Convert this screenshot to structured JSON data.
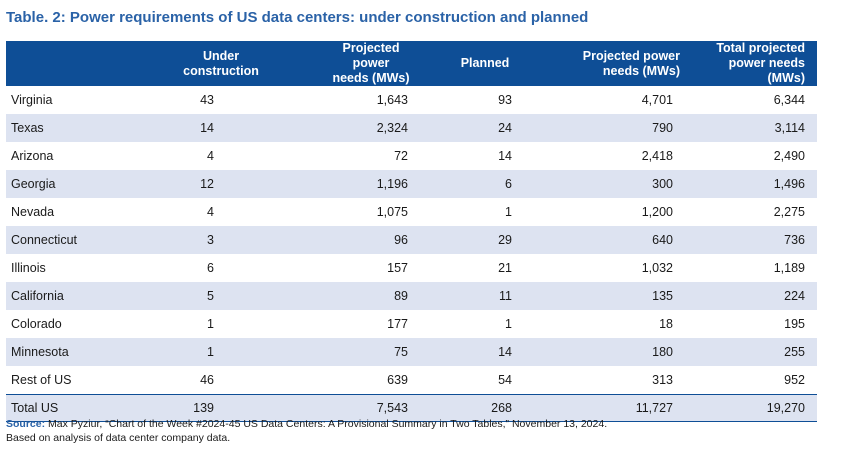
{
  "title": "Table. 2: Power requirements of US data centers: under construction and planned",
  "chart_data": {
    "type": "table",
    "columns": [
      {
        "line1": "",
        "line2": ""
      },
      {
        "line1": "Under",
        "line2": "construction"
      },
      {
        "line1": "Projected power",
        "line2": "needs (MWs)"
      },
      {
        "line1": "",
        "line2": "Planned"
      },
      {
        "line1": "Projected power",
        "line2": "needs (MWs)"
      },
      {
        "line1": "Total projected",
        "line2": "power needs (MWs)"
      }
    ],
    "rows": [
      [
        "Virginia",
        "43",
        "1,643",
        "93",
        "4,701",
        "6,344"
      ],
      [
        "Texas",
        "14",
        "2,324",
        "24",
        "790",
        "3,114"
      ],
      [
        "Arizona",
        "4",
        "72",
        "14",
        "2,418",
        "2,490"
      ],
      [
        "Georgia",
        "12",
        "1,196",
        "6",
        "300",
        "1,496"
      ],
      [
        "Nevada",
        "4",
        "1,075",
        "1",
        "1,200",
        "2,275"
      ],
      [
        "Connecticut",
        "3",
        "96",
        "29",
        "640",
        "736"
      ],
      [
        "Illinois",
        "6",
        "157",
        "21",
        "1,032",
        "1,189"
      ],
      [
        "California",
        "5",
        "89",
        "11",
        "135",
        "224"
      ],
      [
        "Colorado",
        "1",
        "177",
        "1",
        "18",
        "195"
      ],
      [
        "Minnesota",
        "1",
        "75",
        "14",
        "180",
        "255"
      ],
      [
        "Rest of US",
        "46",
        "639",
        "54",
        "313",
        "952"
      ]
    ],
    "total": [
      "Total US",
      "139",
      "7,543",
      "268",
      "11,727",
      "19,270"
    ]
  },
  "source": {
    "label": "Source:",
    "text": " Max Pyziur, “Chart of the Week #2024-45 US Data Centers: A Provisional Summary in Two Tables,” November 13, 2024.",
    "note": "Based on analysis of data center company data."
  },
  "colors": {
    "header_bg": "#0e4e96",
    "title": "#2a62a7",
    "stripe": "#dde3f1"
  }
}
